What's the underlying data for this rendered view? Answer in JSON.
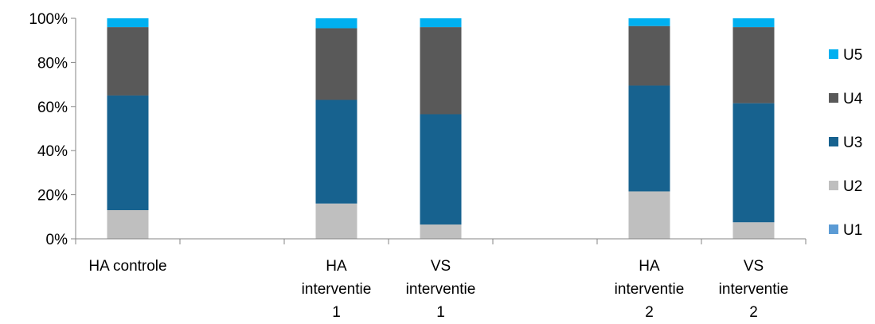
{
  "chart_data": {
    "type": "bar",
    "stacked": true,
    "percent": true,
    "categories": [
      [
        "HA controle"
      ],
      [],
      [
        "HA",
        "interventie",
        "1"
      ],
      [
        "VS",
        "interventie",
        "1"
      ],
      [],
      [
        "HA",
        "interventie",
        "2"
      ],
      [
        "VS",
        "interventie",
        "2"
      ]
    ],
    "series": [
      {
        "name": "U1",
        "color": "#5b9bd5",
        "values": [
          0,
          null,
          0,
          0,
          null,
          0,
          0
        ]
      },
      {
        "name": "U2",
        "color": "#bfbfbf",
        "values": [
          13,
          null,
          16,
          6.5,
          null,
          21.5,
          7.5
        ]
      },
      {
        "name": "U3",
        "color": "#17628f",
        "values": [
          52,
          null,
          47,
          50,
          null,
          48,
          54
        ]
      },
      {
        "name": "U4",
        "color": "#595959",
        "values": [
          31,
          null,
          32.5,
          39.5,
          null,
          27,
          34.5
        ]
      },
      {
        "name": "U5",
        "color": "#00b0f0",
        "values": [
          4,
          null,
          4.5,
          4,
          null,
          3.5,
          4
        ]
      }
    ],
    "y_ticks": [
      "0%",
      "20%",
      "40%",
      "60%",
      "80%",
      "100%"
    ],
    "ylim": [
      0,
      100
    ],
    "grid": false,
    "legend_position": "right"
  }
}
